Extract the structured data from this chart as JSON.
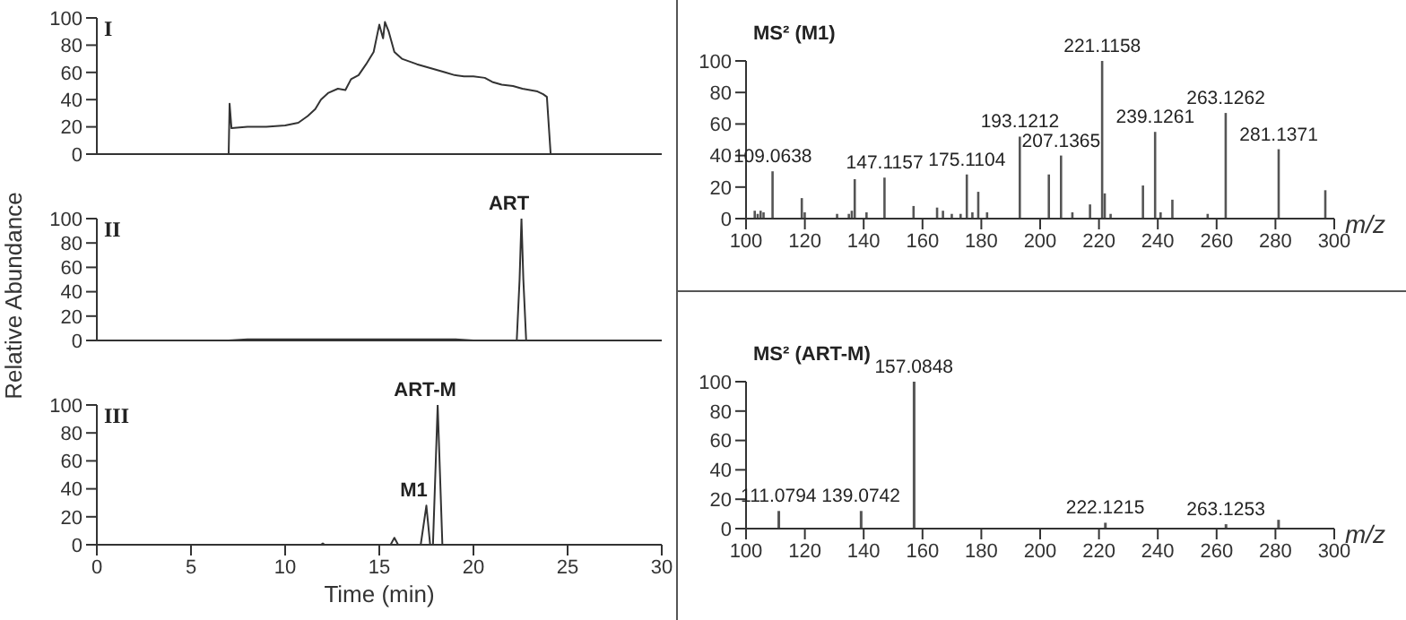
{
  "chart_data": [
    {
      "type": "line",
      "title": "I",
      "x": [
        0,
        7,
        7.05,
        7.15,
        8,
        9,
        10,
        10.7,
        11.2,
        11.6,
        11.9,
        12.3,
        12.8,
        13.2,
        13.5,
        13.9,
        14.3,
        14.7,
        15.0,
        15.2,
        15.3,
        15.5,
        15.8,
        16.2,
        16.6,
        17.0,
        17.5,
        18.0,
        18.5,
        19.0,
        19.5,
        20.0,
        20.6,
        21.0,
        21.5,
        22.1,
        22.6,
        23.0,
        23.4,
        23.7,
        23.9,
        24.1,
        24.3,
        30
      ],
      "series": [
        {
          "color": "#333333",
          "values": [
            0,
            0,
            37,
            19,
            20,
            20,
            21,
            23,
            28,
            33,
            40,
            45,
            48,
            47,
            55,
            58,
            66,
            75,
            95,
            85,
            97,
            90,
            75,
            70,
            68,
            66,
            64,
            62,
            60,
            58,
            57,
            57,
            56,
            53,
            51,
            50,
            48,
            47,
            46,
            44,
            42,
            0,
            0,
            0
          ]
        }
      ],
      "xlim": [
        0,
        30
      ],
      "ylim": [
        0,
        100
      ],
      "yticks": [
        0,
        20,
        40,
        60,
        80,
        100
      ],
      "tick_labels": "y",
      "marker": "none"
    },
    {
      "type": "line",
      "title": "II",
      "ylabel": "Relative Abundance",
      "x": [
        0,
        7,
        8,
        9,
        10,
        11,
        12,
        13,
        14,
        15,
        16,
        17,
        18,
        19,
        20,
        22.3,
        22.45,
        22.55,
        22.65,
        22.8,
        30
      ],
      "series": [
        {
          "color": "#333333",
          "values": [
            0,
            0,
            1,
            1,
            1,
            1,
            1,
            1,
            1,
            1,
            1,
            1,
            1,
            1,
            0,
            0,
            50,
            100,
            50,
            0,
            0
          ]
        }
      ],
      "annotations": [
        {
          "text": "ART",
          "x": 22.55,
          "y": 100
        }
      ],
      "xlim": [
        0,
        30
      ],
      "ylim": [
        0,
        100
      ],
      "yticks": [
        0,
        20,
        40,
        60,
        80,
        100
      ],
      "tick_labels": "y",
      "marker": "none"
    },
    {
      "type": "line",
      "title": "III",
      "xlabel": "Time (min)",
      "x": [
        0,
        11.9,
        12,
        12.1,
        15.6,
        15.8,
        16,
        17.2,
        17.5,
        17.7,
        17.85,
        18.1,
        18.35,
        30
      ],
      "series": [
        {
          "color": "#333333",
          "values": [
            0,
            0,
            1,
            0,
            0,
            5,
            0,
            0,
            28,
            0,
            0,
            100,
            0,
            0
          ]
        }
      ],
      "annotations": [
        {
          "text": "M1",
          "x": 17.5,
          "y": 28
        },
        {
          "text": "ART-M",
          "x": 18.1,
          "y": 100
        }
      ],
      "xlim": [
        0,
        30
      ],
      "xticks": [
        0,
        5,
        10,
        15,
        20,
        25,
        30
      ],
      "ylim": [
        0,
        100
      ],
      "yticks": [
        0,
        20,
        40,
        60,
        80,
        100
      ],
      "marker": "none"
    },
    {
      "type": "bar",
      "title": "MS² (M1)",
      "xlabel": "m/z",
      "x": [
        103,
        104,
        105,
        106,
        109.06,
        119,
        120,
        131,
        135,
        136,
        137,
        141,
        147.12,
        157,
        165,
        167,
        170,
        173,
        175.11,
        177,
        179,
        182,
        193.12,
        203,
        207.14,
        211,
        217,
        221.12,
        222,
        224,
        235,
        239.13,
        241,
        245,
        257,
        263.13,
        281.14,
        297
      ],
      "series": [
        {
          "color": "#555555",
          "values": [
            5,
            3,
            5,
            4,
            30,
            13,
            4,
            3,
            3,
            5,
            25,
            4,
            26,
            8,
            7,
            5,
            3,
            3,
            28,
            4,
            17,
            4,
            52,
            28,
            40,
            4,
            9,
            100,
            16,
            3,
            21,
            55,
            4,
            12,
            3,
            67,
            44,
            18
          ]
        }
      ],
      "annotations": [
        {
          "text": "109.0638",
          "x": 109.06,
          "y": 30
        },
        {
          "text": "147.1157",
          "x": 147.12,
          "y": 26
        },
        {
          "text": "175.1104",
          "x": 175.11,
          "y": 28
        },
        {
          "text": "193.1212",
          "x": 193.12,
          "y": 52
        },
        {
          "text": "207.1365",
          "x": 207.14,
          "y": 40
        },
        {
          "text": "221.1158",
          "x": 221.12,
          "y": 100
        },
        {
          "text": "239.1261",
          "x": 239.13,
          "y": 55
        },
        {
          "text": "263.1262",
          "x": 263.13,
          "y": 67
        },
        {
          "text": "281.1371",
          "x": 281.14,
          "y": 44
        }
      ],
      "xlim": [
        100,
        300
      ],
      "xticks": [
        100,
        120,
        140,
        160,
        180,
        200,
        220,
        240,
        260,
        280,
        300
      ],
      "ylim": [
        0,
        100
      ],
      "yticks": [
        0,
        20,
        40,
        60,
        80,
        100
      ]
    },
    {
      "type": "bar",
      "title": "MS² (ART-M)",
      "xlabel": "m/z",
      "x": [
        111.08,
        139.07,
        157.08,
        222.12,
        263.13,
        281
      ],
      "series": [
        {
          "color": "#555555",
          "values": [
            12,
            12,
            100,
            4,
            3,
            6
          ]
        }
      ],
      "annotations": [
        {
          "text": "111.0794",
          "x": 111.08,
          "y": 12
        },
        {
          "text": "139.0742",
          "x": 139.07,
          "y": 12
        },
        {
          "text": "157.0848",
          "x": 157.08,
          "y": 100
        },
        {
          "text": "222.1215",
          "x": 222.12,
          "y": 4
        },
        {
          "text": "263.1253",
          "x": 263.13,
          "y": 3
        }
      ],
      "xlim": [
        100,
        300
      ],
      "xticks": [
        100,
        120,
        140,
        160,
        180,
        200,
        220,
        240,
        260,
        280,
        300
      ],
      "ylim": [
        0,
        100
      ],
      "yticks": [
        0,
        20,
        40,
        60,
        80,
        100
      ]
    }
  ]
}
